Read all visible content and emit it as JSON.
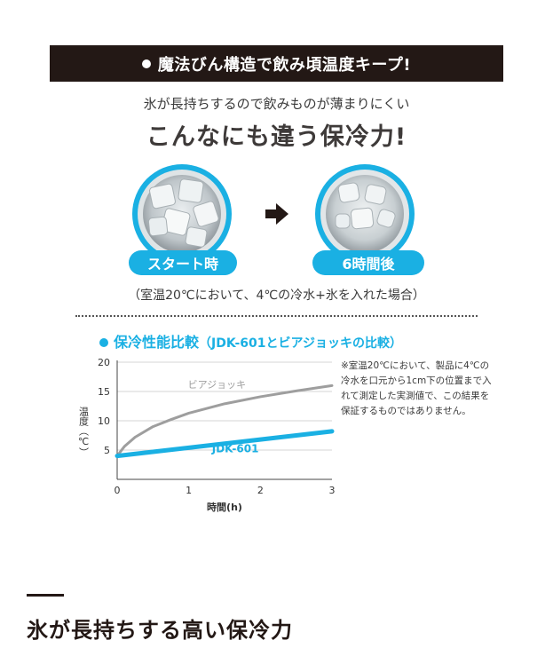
{
  "banner": {
    "title": "魔法びん構造で飲み頃温度キープ!"
  },
  "intro": {
    "subtitle": "氷が長持ちするので飲みものが薄まりにくい",
    "headline": "こんなにも違う保冷力!"
  },
  "photos": {
    "start_label": "スタート時",
    "after_label": "6時間後",
    "condition_note": "（室温20℃において、4℃の冷水+氷を入れた場合）"
  },
  "comparison": {
    "title": "保冷性能比較",
    "title_paren": "（JDK-601とビアジョッキの比較）",
    "note": "※室温20℃において、製品に4℃の冷水を口元から1cm下の位置まで入れて測定した実測値で、この結果を保証するものではありません。"
  },
  "chart_data": {
    "type": "line",
    "xlabel": "時間(h)",
    "ylabel": "温度（℃）",
    "xlim": [
      0,
      3
    ],
    "ylim": [
      0,
      20
    ],
    "x_ticks": [
      0,
      1,
      2,
      3
    ],
    "y_ticks": [
      5,
      10,
      15,
      20
    ],
    "grid": "horizontal",
    "series": [
      {
        "name": "ビアジョッキ",
        "color": "#9e9e9e",
        "x": [
          0,
          0.1,
          0.25,
          0.5,
          0.75,
          1,
          1.5,
          2,
          2.5,
          3
        ],
        "y": [
          4,
          5.6,
          7.2,
          9.0,
          10.2,
          11.3,
          12.9,
          14.1,
          15.1,
          16.0
        ]
      },
      {
        "name": "JDK-601",
        "color": "#1ab0e3",
        "x": [
          0,
          0.5,
          1,
          1.5,
          2,
          2.5,
          3
        ],
        "y": [
          4,
          4.7,
          5.4,
          6.1,
          6.8,
          7.5,
          8.2
        ]
      }
    ]
  },
  "footer": {
    "title": "氷が長持ちする高い保冷力"
  },
  "colors": {
    "accent": "#1ab0e3",
    "banner_bg": "#231815"
  }
}
